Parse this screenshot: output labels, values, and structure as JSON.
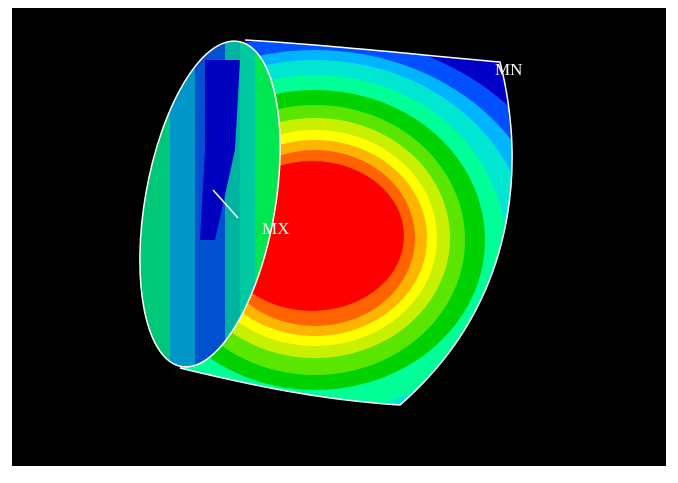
{
  "labels": {
    "min": "MN",
    "max": "MX"
  }
}
